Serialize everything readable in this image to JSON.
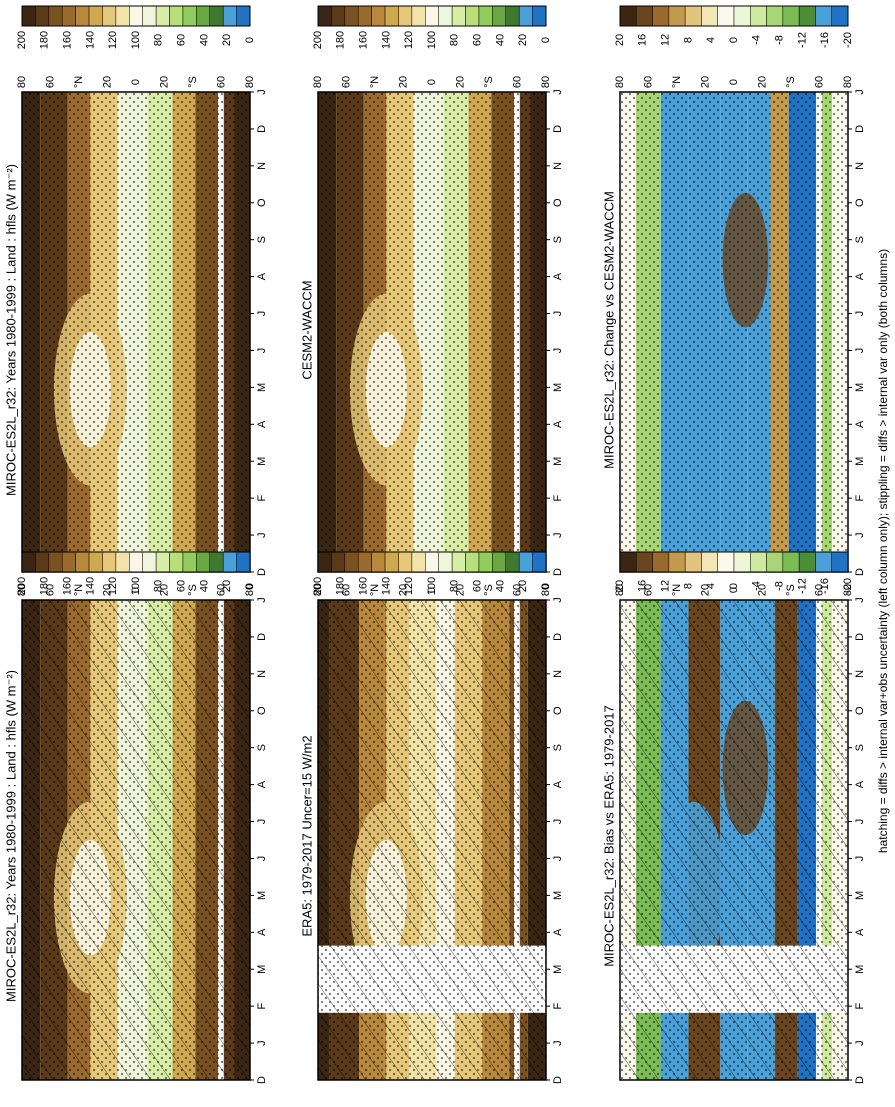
{
  "colors": {
    "seq": [
      "#3a2612",
      "#5a3a18",
      "#7a5222",
      "#9a6a2e",
      "#b8883c",
      "#d0a850",
      "#e6c878",
      "#f2e4a8",
      "#fbf7e6",
      "#f0f6dc",
      "#d8eda6",
      "#b8e07a",
      "#92cc5c",
      "#6aa844",
      "#3e7a2e",
      "#4aa0d8",
      "#1f72c4"
    ],
    "diff": [
      "#3a2612",
      "#6a4620",
      "#9a6a2e",
      "#c49a4c",
      "#e2c47c",
      "#f4e6b4",
      "#fbf8ec",
      "#eef6d8",
      "#cfe9a0",
      "#a8d676",
      "#7cbc56",
      "#4c8e36",
      "#4aa0d8",
      "#1f72c4"
    ],
    "frame": "#000000",
    "mask": "#ffffff"
  },
  "footer_note": "hatching = diffs > internal var+obs uncertainty (left column only); stippling = diffs > internal var only (both columns)",
  "panels": {
    "ml": {
      "title": "MIROC-ES2L_r32: Years 1980-1999 : Land : hfls (W m⁻²)"
    },
    "mr": {
      "title": "MIROC-ES2L_r32: Years 1980-1999 : Land : hfls (W m⁻²)"
    },
    "cl": {
      "title": "ERA5: 1979-2017 Uncer=15 W/m2"
    },
    "cr": {
      "title": "CESM2-WACCM"
    },
    "bl": {
      "title": "MIROC-ES2L_r32: Bias vs ERA5: 1979-2017"
    },
    "br": {
      "title": "MIROC-ES2L_r32: Change vs CESM2-WACCM"
    }
  },
  "axes": {
    "months": [
      "D",
      "J",
      "F",
      "M",
      "A",
      "M",
      "J",
      "J",
      "A",
      "S",
      "O",
      "N",
      "D",
      "J"
    ],
    "lats": [
      "80",
      "60",
      "°N",
      "20",
      "0",
      "20",
      "°S",
      "60",
      "80"
    ]
  },
  "colorbars": {
    "seq": [
      "200",
      "180",
      "160",
      "140",
      "120",
      "100",
      "80",
      "60",
      "40",
      "20",
      "0"
    ],
    "diff": [
      "20",
      "16",
      "12",
      "8",
      "4",
      "0",
      "-4",
      "-8",
      "-12",
      "-16",
      "-20"
    ]
  },
  "chart_data": [
    {
      "type": "heatmap",
      "id": "ml",
      "title": "MIROC-ES2L_r32: Years 1980-1999 : Land : hfls (W m⁻²)",
      "x": [
        "D",
        "J",
        "F",
        "M",
        "A",
        "M",
        "J",
        "J",
        "A",
        "S",
        "O",
        "N",
        "D",
        "J"
      ],
      "y_ticks": [
        80,
        60,
        20,
        0,
        20,
        60,
        80
      ],
      "colorbar": {
        "range": [
          0,
          200
        ],
        "ticks": [
          0,
          20,
          40,
          60,
          80,
          100,
          120,
          140,
          160,
          180,
          200
        ]
      }
    },
    {
      "type": "heatmap",
      "id": "mr",
      "title": "MIROC-ES2L_r32: Years 1980-1999 : Land : hfls (W m⁻²)",
      "x": [
        "D",
        "J",
        "F",
        "M",
        "A",
        "M",
        "J",
        "J",
        "A",
        "S",
        "O",
        "N",
        "D",
        "J"
      ],
      "y_ticks": [
        80,
        60,
        20,
        0,
        20,
        60,
        80
      ],
      "colorbar": {
        "range": [
          0,
          200
        ],
        "ticks": [
          0,
          20,
          40,
          60,
          80,
          100,
          120,
          140,
          160,
          180,
          200
        ]
      }
    },
    {
      "type": "heatmap",
      "id": "cl",
      "title": "ERA5: 1979-2017 Uncer=15 W/m2",
      "x": [
        "D",
        "J",
        "F",
        "M",
        "A",
        "M",
        "J",
        "J",
        "A",
        "S",
        "O",
        "N",
        "D",
        "J"
      ],
      "y_ticks": [
        80,
        60,
        20,
        0,
        20,
        60,
        80
      ],
      "colorbar": {
        "range": [
          0,
          200
        ],
        "ticks": [
          0,
          20,
          40,
          60,
          80,
          100,
          120,
          140,
          160,
          180,
          200
        ]
      }
    },
    {
      "type": "heatmap",
      "id": "cr",
      "title": "CESM2-WACCM",
      "x": [
        "D",
        "J",
        "F",
        "M",
        "A",
        "M",
        "J",
        "J",
        "A",
        "S",
        "O",
        "N",
        "D",
        "J"
      ],
      "y_ticks": [
        80,
        60,
        20,
        0,
        20,
        60,
        80
      ],
      "colorbar": {
        "range": [
          0,
          200
        ],
        "ticks": [
          0,
          20,
          40,
          60,
          80,
          100,
          120,
          140,
          160,
          180,
          200
        ]
      }
    },
    {
      "type": "heatmap",
      "id": "bl",
      "title": "MIROC-ES2L_r32: Bias vs ERA5: 1979-2017",
      "x": [
        "D",
        "J",
        "F",
        "M",
        "A",
        "M",
        "J",
        "J",
        "A",
        "S",
        "O",
        "N",
        "D",
        "J"
      ],
      "y_ticks": [
        80,
        60,
        20,
        0,
        20,
        60,
        80
      ],
      "colorbar": {
        "range": [
          -20,
          20
        ],
        "ticks": [
          -20,
          -16,
          -12,
          -8,
          -4,
          0,
          4,
          8,
          12,
          16,
          20
        ]
      }
    },
    {
      "type": "heatmap",
      "id": "br",
      "title": "MIROC-ES2L_r32: Change vs CESM2-WACCM",
      "x": [
        "D",
        "J",
        "F",
        "M",
        "A",
        "M",
        "J",
        "J",
        "A",
        "S",
        "O",
        "N",
        "D",
        "J"
      ],
      "y_ticks": [
        80,
        60,
        20,
        0,
        20,
        60,
        80
      ],
      "colorbar": {
        "range": [
          -20,
          20
        ],
        "ticks": [
          -20,
          -16,
          -12,
          -8,
          -4,
          0,
          4,
          8,
          12,
          16,
          20
        ]
      }
    }
  ]
}
